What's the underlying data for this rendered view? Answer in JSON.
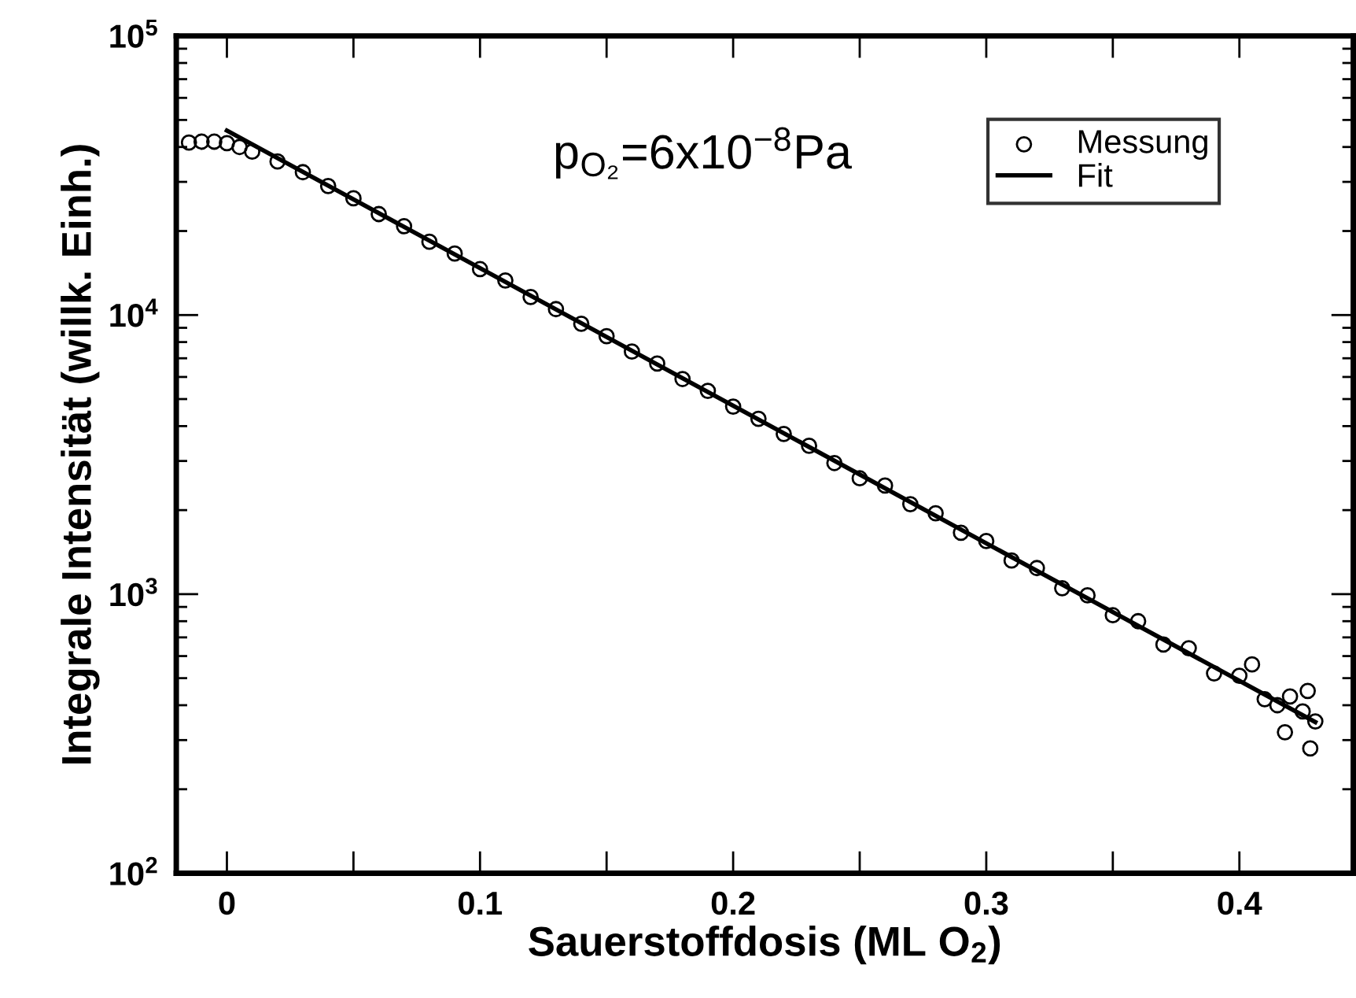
{
  "chart_data": {
    "type": "scatter",
    "xlabel": "Sauerstoffdosis (ML O$_{2}$)",
    "ylabel": "Integrale Intensität (willk. Einh.)",
    "annotations": [
      "p$_{O₂}$=6x10$^{−8}$Pa"
    ],
    "log": "y",
    "legend": "top right",
    "grid": false,
    "xlim": [
      -0.02,
      0.445
    ],
    "xticks": [
      0,
      {
        "value": 0.05,
        "label": null
      },
      0.1,
      {
        "value": 0.15,
        "label": null
      },
      0.2,
      {
        "value": 0.25,
        "label": null
      },
      0.3,
      {
        "value": 0.35,
        "label": null
      },
      0.4
    ],
    "ylim": [
      100,
      100000
    ],
    "yticks": [
      {
        "value": 100,
        "label": "10$^{2}$"
      },
      {
        "value": 1000,
        "label": "10$^{3}$"
      },
      {
        "value": 10000,
        "label": "10$^{4}$"
      },
      {
        "value": 100000,
        "label": "10$^{5}$"
      }
    ],
    "series": [
      {
        "name": "Messung",
        "marker": "circle",
        "color": "#000000",
        "x": [
          -0.015,
          -0.01,
          -0.005,
          0,
          0.005,
          0.01,
          0.02,
          0.03,
          0.04,
          0.05,
          0.06,
          0.07,
          0.08,
          0.09,
          0.1,
          0.11,
          0.12,
          0.13,
          0.14,
          0.15,
          0.16,
          0.17,
          0.18,
          0.19,
          0.2,
          0.21,
          0.22,
          0.23,
          0.24,
          0.25,
          0.26,
          0.27,
          0.28,
          0.29,
          0.3,
          0.31,
          0.32,
          0.33,
          0.34,
          0.35,
          0.36,
          0.37,
          0.38,
          0.39,
          0.4,
          0.405,
          0.41,
          0.415,
          0.418,
          0.42,
          0.425,
          0.427,
          0.428,
          0.43
        ],
        "values": [
          41500,
          41800,
          41800,
          41300,
          40000,
          38500,
          35500,
          32500,
          29000,
          26200,
          23000,
          20800,
          18300,
          16600,
          14600,
          13300,
          11600,
          10500,
          9300,
          8400,
          7400,
          6700,
          5900,
          5350,
          4700,
          4250,
          3750,
          3400,
          2950,
          2600,
          2450,
          2100,
          1950,
          1660,
          1550,
          1320,
          1240,
          1050,
          990,
          840,
          800,
          660,
          640,
          520,
          510,
          560,
          420,
          400,
          320,
          430,
          380,
          450,
          280,
          350
        ]
      },
      {
        "name": "Fit",
        "type": "line",
        "line_style": "solid",
        "color": "#000000",
        "x": [
          0,
          0.43
        ],
        "values": [
          45800,
          348
        ]
      }
    ]
  }
}
